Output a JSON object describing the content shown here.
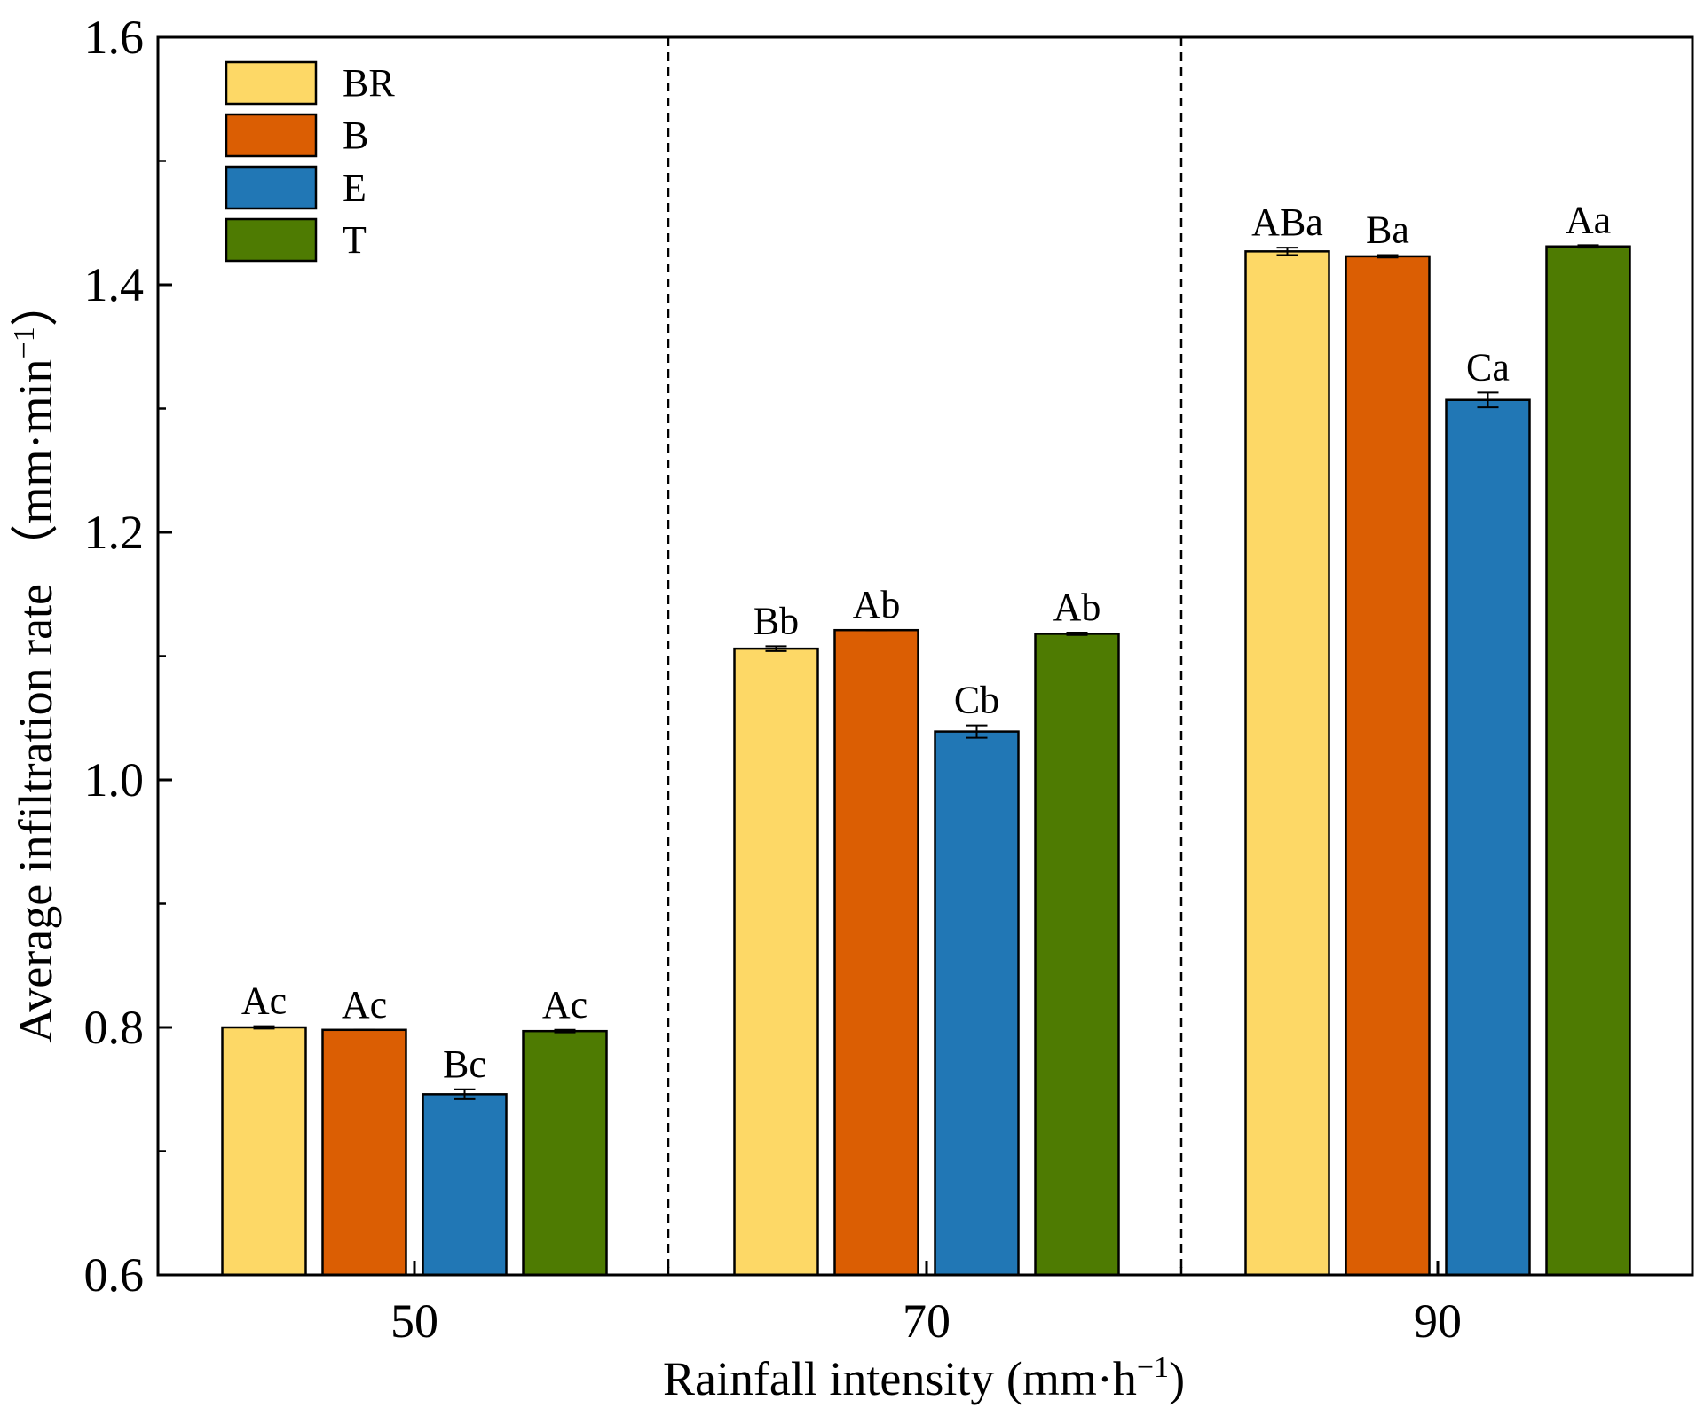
{
  "chart_data": {
    "type": "bar",
    "title": "",
    "xlabel": "Rainfall intensity (mm·h",
    "xlabel_sup": "−1",
    "xlabel_end": ")",
    "ylabel": "Average infiltration rate （mm·min",
    "ylabel_sup": "−1",
    "ylabel_end": "）",
    "ylim": [
      0.6,
      1.6
    ],
    "yticks": [
      "0.6",
      "0.8",
      "1.0",
      "1.2",
      "1.4",
      "1.6"
    ],
    "categories": [
      "50",
      "70",
      "90"
    ],
    "legend_position": "top-left",
    "group_separators": "dashed",
    "series": [
      {
        "name": "BR",
        "color": "#FDD866",
        "values": [
          0.8,
          1.106,
          1.427
        ],
        "errors": [
          0.001,
          0.002,
          0.003
        ],
        "labels": [
          "Ac",
          "Bb",
          "ABa"
        ]
      },
      {
        "name": "B",
        "color": "#DB5E03",
        "values": [
          0.798,
          1.121,
          1.423
        ],
        "errors": [
          0.0,
          0.0,
          0.001
        ],
        "labels": [
          "Ac",
          "Ab",
          "Ba"
        ]
      },
      {
        "name": "E",
        "color": "#2177B5",
        "values": [
          0.746,
          1.039,
          1.307
        ],
        "errors": [
          0.004,
          0.005,
          0.006
        ],
        "labels": [
          "Bc",
          "Cb",
          "Ca"
        ]
      },
      {
        "name": "T",
        "color": "#4E7B02",
        "values": [
          0.797,
          1.118,
          1.431
        ],
        "errors": [
          0.001,
          0.001,
          0.001
        ],
        "labels": [
          "Ac",
          "Ab",
          "Aa"
        ]
      }
    ]
  }
}
